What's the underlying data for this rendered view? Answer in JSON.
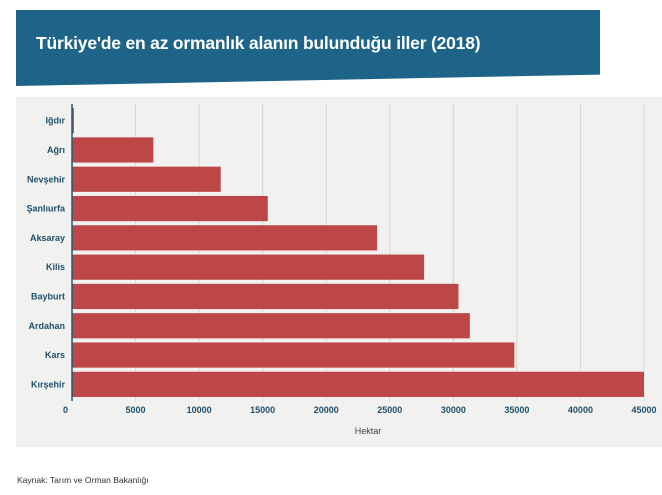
{
  "header": {
    "title": "Türkiye'de en az ormanlık alanın bulunduğu iller (2018)"
  },
  "chart_data": {
    "type": "bar",
    "orientation": "horizontal",
    "title": "Türkiye'de en az ormanlık alanın bulunduğu iller (2018)",
    "xlabel": "Hektar",
    "ylabel": "",
    "xlim": [
      0,
      45000
    ],
    "x_ticks": [
      "0",
      "5000",
      "10000",
      "15000",
      "20000",
      "25000",
      "30000",
      "35000",
      "40000",
      "45000"
    ],
    "grid": "vertical",
    "categories": [
      "Iğdır",
      "Ağrı",
      "Nevşehir",
      "Şanlıurfa",
      "Aksaray",
      "Kilis",
      "Bayburt",
      "Ardahan",
      "Kars",
      "Kırşehir"
    ],
    "values": [
      150,
      6400,
      11700,
      15400,
      24000,
      27700,
      30400,
      31300,
      34800,
      45000
    ],
    "bar_color": "#bd4646",
    "axis_color": "#1e5a78"
  },
  "footer": {
    "source": "Kaynak: Tarım ve Orman Bakanlığı"
  }
}
